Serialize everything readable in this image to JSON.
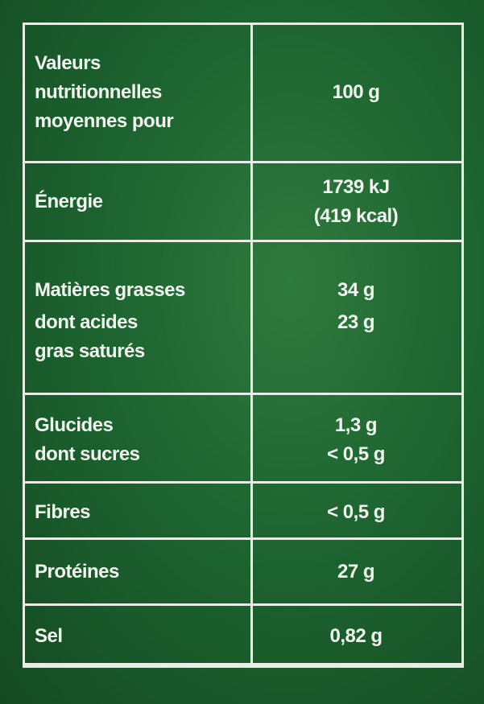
{
  "header": {
    "label_lines": [
      "Valeurs",
      "nutritionnelles",
      "moyennes pour"
    ],
    "value": "100 g"
  },
  "rows": [
    {
      "labels": [
        "Énergie"
      ],
      "values": [
        "1739 kJ",
        "(419 kcal)"
      ]
    },
    {
      "labels": [
        "Matières grasses",
        "dont acides",
        "gras saturés"
      ],
      "values": [
        "34 g",
        "23 g"
      ]
    },
    {
      "labels": [
        "Glucides",
        "dont sucres"
      ],
      "values": [
        "1,3 g",
        "< 0,5 g"
      ]
    },
    {
      "labels": [
        "Fibres"
      ],
      "values": [
        "< 0,5 g"
      ]
    },
    {
      "labels": [
        "Protéines"
      ],
      "values": [
        "27 g"
      ]
    },
    {
      "labels": [
        "Sel"
      ],
      "values": [
        "0,82 g"
      ]
    }
  ],
  "colors": {
    "background": "#1d6430",
    "lines": "#e8eee6",
    "text": "#f2f5ef"
  }
}
